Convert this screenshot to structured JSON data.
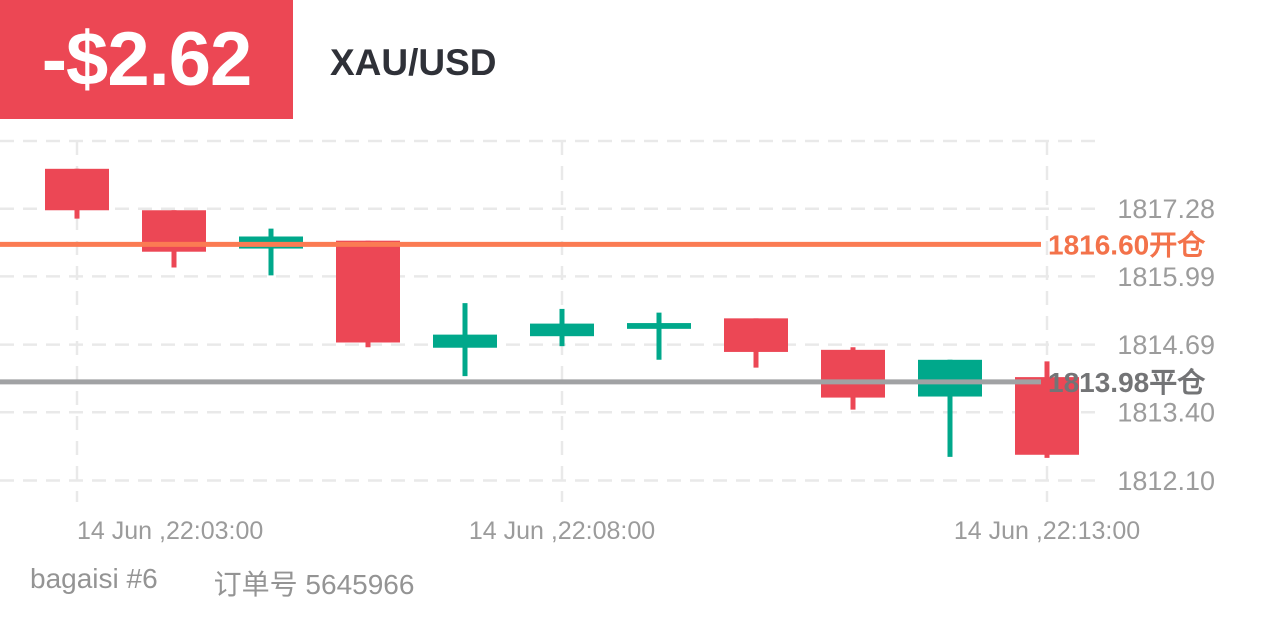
{
  "header": {
    "pnl": "-$2.62",
    "pnl_bg": "#EC4754",
    "symbol": "XAU/USD"
  },
  "chart_data": {
    "type": "candlestick",
    "title": "XAU/USD",
    "grid": true,
    "legend": false,
    "candles": [
      {
        "open": 1818.04,
        "high": 1818.04,
        "low": 1817.09,
        "close": 1817.25
      },
      {
        "open": 1817.25,
        "high": 1817.25,
        "low": 1816.16,
        "close": 1816.46
      },
      {
        "open": 1816.52,
        "high": 1816.9,
        "low": 1816.01,
        "close": 1816.75
      },
      {
        "open": 1816.67,
        "high": 1816.67,
        "low": 1814.64,
        "close": 1814.73
      },
      {
        "open": 1814.63,
        "high": 1815.48,
        "low": 1814.09,
        "close": 1814.88
      },
      {
        "open": 1814.85,
        "high": 1815.37,
        "low": 1814.66,
        "close": 1815.09
      },
      {
        "open": 1814.99,
        "high": 1815.3,
        "low": 1814.4,
        "close": 1815.1
      },
      {
        "open": 1815.19,
        "high": 1815.19,
        "low": 1814.25,
        "close": 1814.55
      },
      {
        "open": 1814.59,
        "high": 1814.64,
        "low": 1813.45,
        "close": 1813.68
      },
      {
        "open": 1813.7,
        "high": 1814.4,
        "low": 1812.55,
        "close": 1814.4
      },
      {
        "open": 1814.07,
        "high": 1814.37,
        "low": 1812.53,
        "close": 1812.59
      }
    ],
    "y_ticks": [
      "1817.28",
      "1815.99",
      "1814.69",
      "1813.40",
      "1812.10"
    ],
    "y_axis": {
      "top_price": 1818.57,
      "bottom_price": 1811.69,
      "grid_top_price": 1818.57
    },
    "x_ticks": [
      {
        "index": 0,
        "label": "14 Jun ,22:03:00",
        "align": "start"
      },
      {
        "index": 5,
        "label": "14 Jun ,22:08:00",
        "align": "middle"
      },
      {
        "index": 10,
        "label": "14 Jun ,22:13:00",
        "align": "middle"
      }
    ],
    "open_line": {
      "price": 1816.6,
      "label": "1816.60开仓",
      "line_color": "#FB7B53",
      "label_color": "#F3724A"
    },
    "close_line": {
      "price": 1813.98,
      "label": "1813.98平仓",
      "line_color": "#A1A2A4",
      "label_color": "#737476"
    },
    "colors": {
      "up": "#00A88B",
      "down": "#EC4755",
      "grid": "#E9E9E9",
      "tick_text": "#9C9C9C",
      "time_text": "#9B9B9B"
    }
  },
  "footer": {
    "account": "bagaisi #6",
    "order": "订单号 5645966"
  }
}
